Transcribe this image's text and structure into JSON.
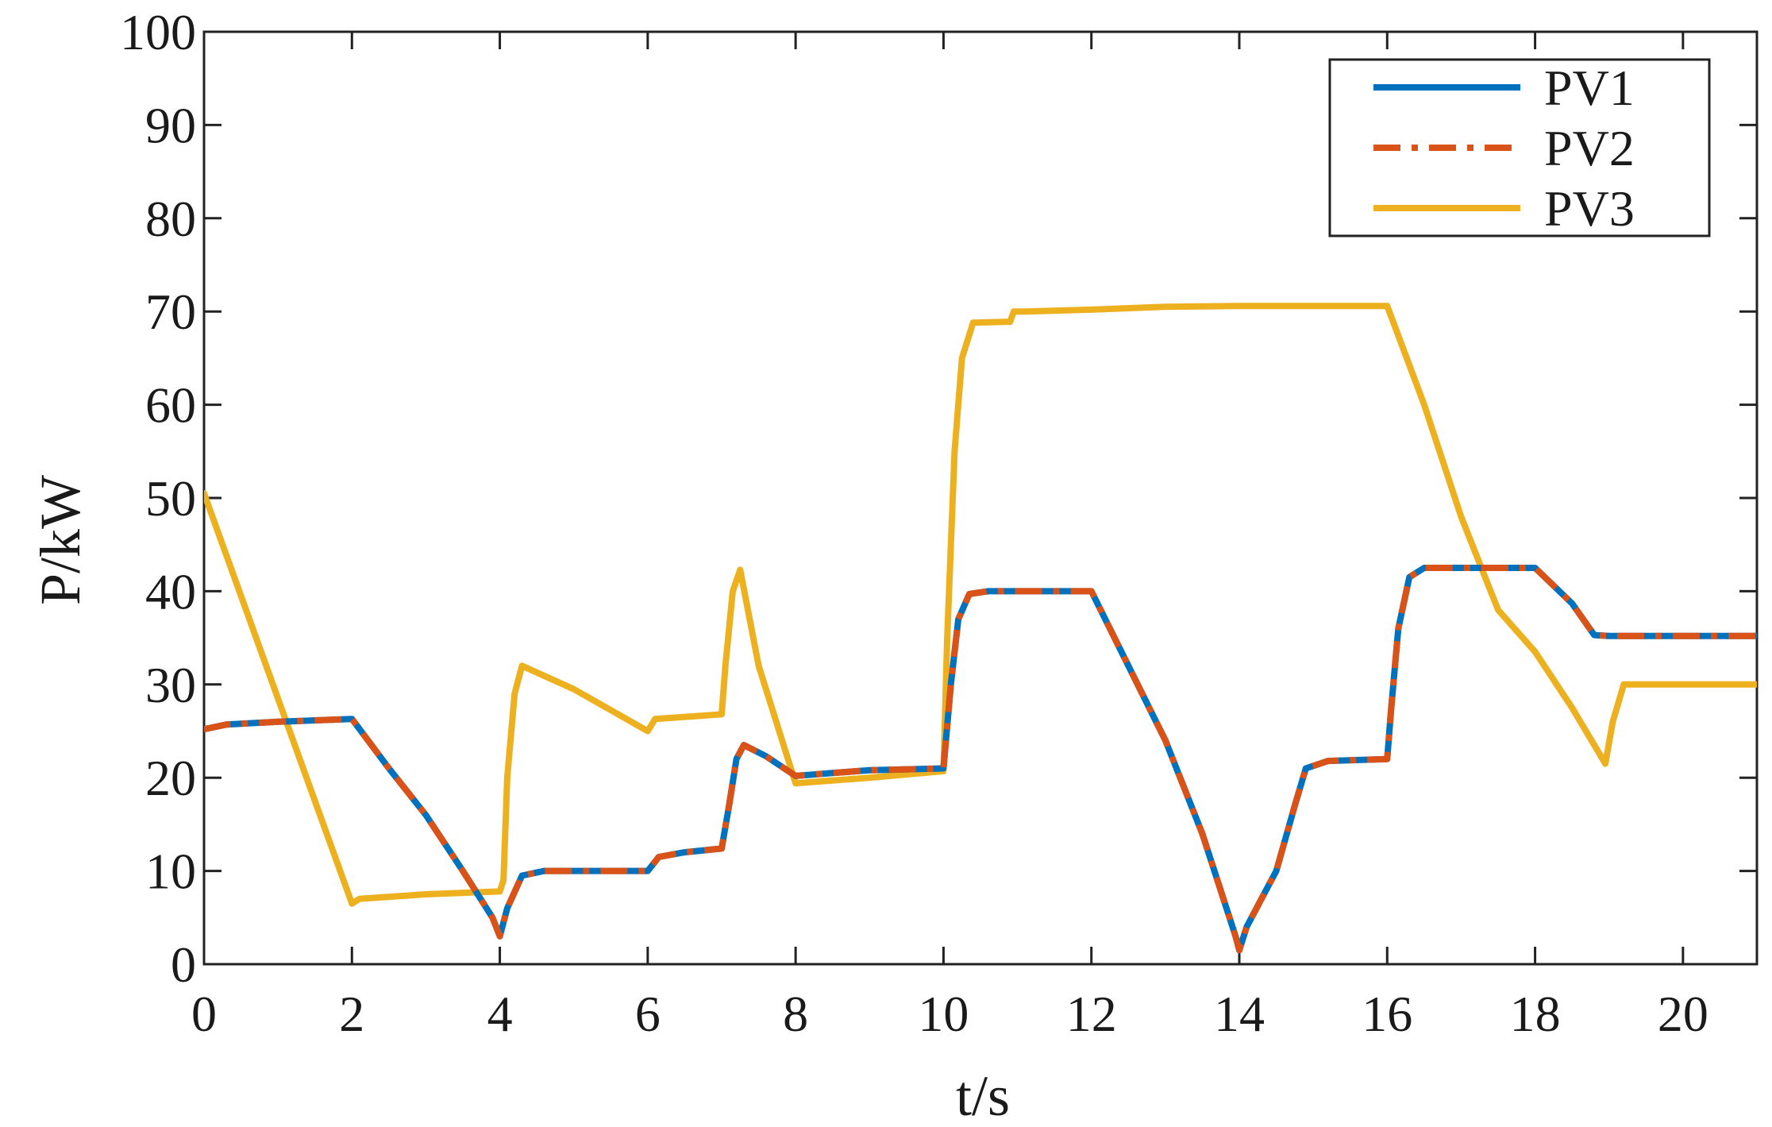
{
  "chart_data": {
    "type": "line",
    "title": "",
    "xlabel": "t/s",
    "ylabel": "P/kW",
    "xlim": [
      0,
      21
    ],
    "ylim": [
      0,
      100
    ],
    "xticks": [
      0,
      2,
      4,
      6,
      8,
      10,
      12,
      14,
      16,
      18,
      20
    ],
    "yticks": [
      0,
      10,
      20,
      30,
      40,
      50,
      60,
      70,
      80,
      90,
      100
    ],
    "xtick_labels": [
      "0",
      "2",
      "4",
      "6",
      "8",
      "10",
      "12",
      "14",
      "16",
      "18",
      "20"
    ],
    "ytick_labels": [
      "0",
      "10",
      "20",
      "30",
      "40",
      "50",
      "60",
      "70",
      "80",
      "90",
      "100"
    ],
    "grid": false,
    "legend_position": "top-right",
    "series": [
      {
        "name": "PV1",
        "color": "#0072BD",
        "style": "solid",
        "points": [
          [
            0,
            25.2
          ],
          [
            0.3,
            25.7
          ],
          [
            1,
            26
          ],
          [
            2,
            26.3
          ],
          [
            2.5,
            21
          ],
          [
            3,
            16
          ],
          [
            3.5,
            10
          ],
          [
            3.9,
            5
          ],
          [
            4,
            3
          ],
          [
            4.1,
            6
          ],
          [
            4.3,
            9.5
          ],
          [
            4.6,
            10
          ],
          [
            5,
            10
          ],
          [
            6,
            10
          ],
          [
            6.15,
            11.5
          ],
          [
            6.5,
            12
          ],
          [
            7,
            12.4
          ],
          [
            7.1,
            17
          ],
          [
            7.2,
            22
          ],
          [
            7.3,
            23.5
          ],
          [
            7.6,
            22.3
          ],
          [
            8,
            20.2
          ],
          [
            8.5,
            20.5
          ],
          [
            9,
            20.8
          ],
          [
            10,
            21
          ],
          [
            10.1,
            30
          ],
          [
            10.2,
            37
          ],
          [
            10.35,
            39.7
          ],
          [
            10.6,
            40
          ],
          [
            11,
            40
          ],
          [
            12,
            40
          ],
          [
            12.5,
            32
          ],
          [
            13,
            24
          ],
          [
            13.5,
            14
          ],
          [
            13.95,
            3
          ],
          [
            14,
            1.5
          ],
          [
            14.1,
            4
          ],
          [
            14.3,
            7
          ],
          [
            14.5,
            10
          ],
          [
            14.75,
            17
          ],
          [
            14.9,
            21
          ],
          [
            15.2,
            21.8
          ],
          [
            16,
            22
          ],
          [
            16.05,
            27
          ],
          [
            16.15,
            36
          ],
          [
            16.3,
            41.5
          ],
          [
            16.5,
            42.5
          ],
          [
            17,
            42.5
          ],
          [
            18,
            42.5
          ],
          [
            18.5,
            38.7
          ],
          [
            18.8,
            35.3
          ],
          [
            19,
            35.2
          ],
          [
            20,
            35.2
          ],
          [
            21,
            35.2
          ]
        ]
      },
      {
        "name": "PV2",
        "color": "#D95319",
        "style": "dashdot",
        "points": [
          [
            0,
            25.2
          ],
          [
            0.3,
            25.7
          ],
          [
            1,
            26
          ],
          [
            2,
            26.3
          ],
          [
            2.5,
            21
          ],
          [
            3,
            16
          ],
          [
            3.5,
            10
          ],
          [
            3.9,
            5
          ],
          [
            4,
            3
          ],
          [
            4.1,
            6
          ],
          [
            4.3,
            9.5
          ],
          [
            4.6,
            10
          ],
          [
            5,
            10
          ],
          [
            6,
            10
          ],
          [
            6.15,
            11.5
          ],
          [
            6.5,
            12
          ],
          [
            7,
            12.4
          ],
          [
            7.1,
            17
          ],
          [
            7.2,
            22
          ],
          [
            7.3,
            23.5
          ],
          [
            7.6,
            22.3
          ],
          [
            8,
            20.2
          ],
          [
            8.5,
            20.5
          ],
          [
            9,
            20.8
          ],
          [
            10,
            21
          ],
          [
            10.1,
            30
          ],
          [
            10.2,
            37
          ],
          [
            10.35,
            39.7
          ],
          [
            10.6,
            40
          ],
          [
            11,
            40
          ],
          [
            12,
            40
          ],
          [
            12.5,
            32
          ],
          [
            13,
            24
          ],
          [
            13.5,
            14
          ],
          [
            13.95,
            3
          ],
          [
            14,
            1.5
          ],
          [
            14.1,
            4
          ],
          [
            14.3,
            7
          ],
          [
            14.5,
            10
          ],
          [
            14.75,
            17
          ],
          [
            14.9,
            21
          ],
          [
            15.2,
            21.8
          ],
          [
            16,
            22
          ],
          [
            16.05,
            27
          ],
          [
            16.15,
            36
          ],
          [
            16.3,
            41.5
          ],
          [
            16.5,
            42.5
          ],
          [
            17,
            42.5
          ],
          [
            18,
            42.5
          ],
          [
            18.5,
            38.7
          ],
          [
            18.8,
            35.3
          ],
          [
            19,
            35.2
          ],
          [
            20,
            35.2
          ],
          [
            21,
            35.2
          ]
        ]
      },
      {
        "name": "PV3",
        "color": "#EDB120",
        "style": "solid",
        "points": [
          [
            0,
            50.5
          ],
          [
            1,
            28.5
          ],
          [
            2,
            6.5
          ],
          [
            2.1,
            7
          ],
          [
            3,
            7.5
          ],
          [
            4,
            7.8
          ],
          [
            4.05,
            9
          ],
          [
            4.1,
            20
          ],
          [
            4.2,
            29
          ],
          [
            4.3,
            32
          ],
          [
            5,
            29.5
          ],
          [
            6,
            25
          ],
          [
            6.1,
            26.3
          ],
          [
            7,
            26.8
          ],
          [
            7.05,
            32
          ],
          [
            7.15,
            40
          ],
          [
            7.25,
            42.3
          ],
          [
            7.5,
            32
          ],
          [
            8,
            19.4
          ],
          [
            9,
            20
          ],
          [
            10,
            20.7
          ],
          [
            10.05,
            35
          ],
          [
            10.15,
            55
          ],
          [
            10.25,
            65
          ],
          [
            10.4,
            68.8
          ],
          [
            10.9,
            68.9
          ],
          [
            10.95,
            70
          ],
          [
            11.1,
            70
          ],
          [
            12,
            70.2
          ],
          [
            13,
            70.5
          ],
          [
            14,
            70.6
          ],
          [
            15,
            70.6
          ],
          [
            16,
            70.6
          ],
          [
            16.5,
            60
          ],
          [
            17,
            48
          ],
          [
            17.5,
            38
          ],
          [
            18,
            33.5
          ],
          [
            18.5,
            27.5
          ],
          [
            18.95,
            21.5
          ],
          [
            19.05,
            26
          ],
          [
            19.2,
            30
          ],
          [
            20,
            30
          ],
          [
            21,
            30
          ]
        ]
      }
    ]
  }
}
